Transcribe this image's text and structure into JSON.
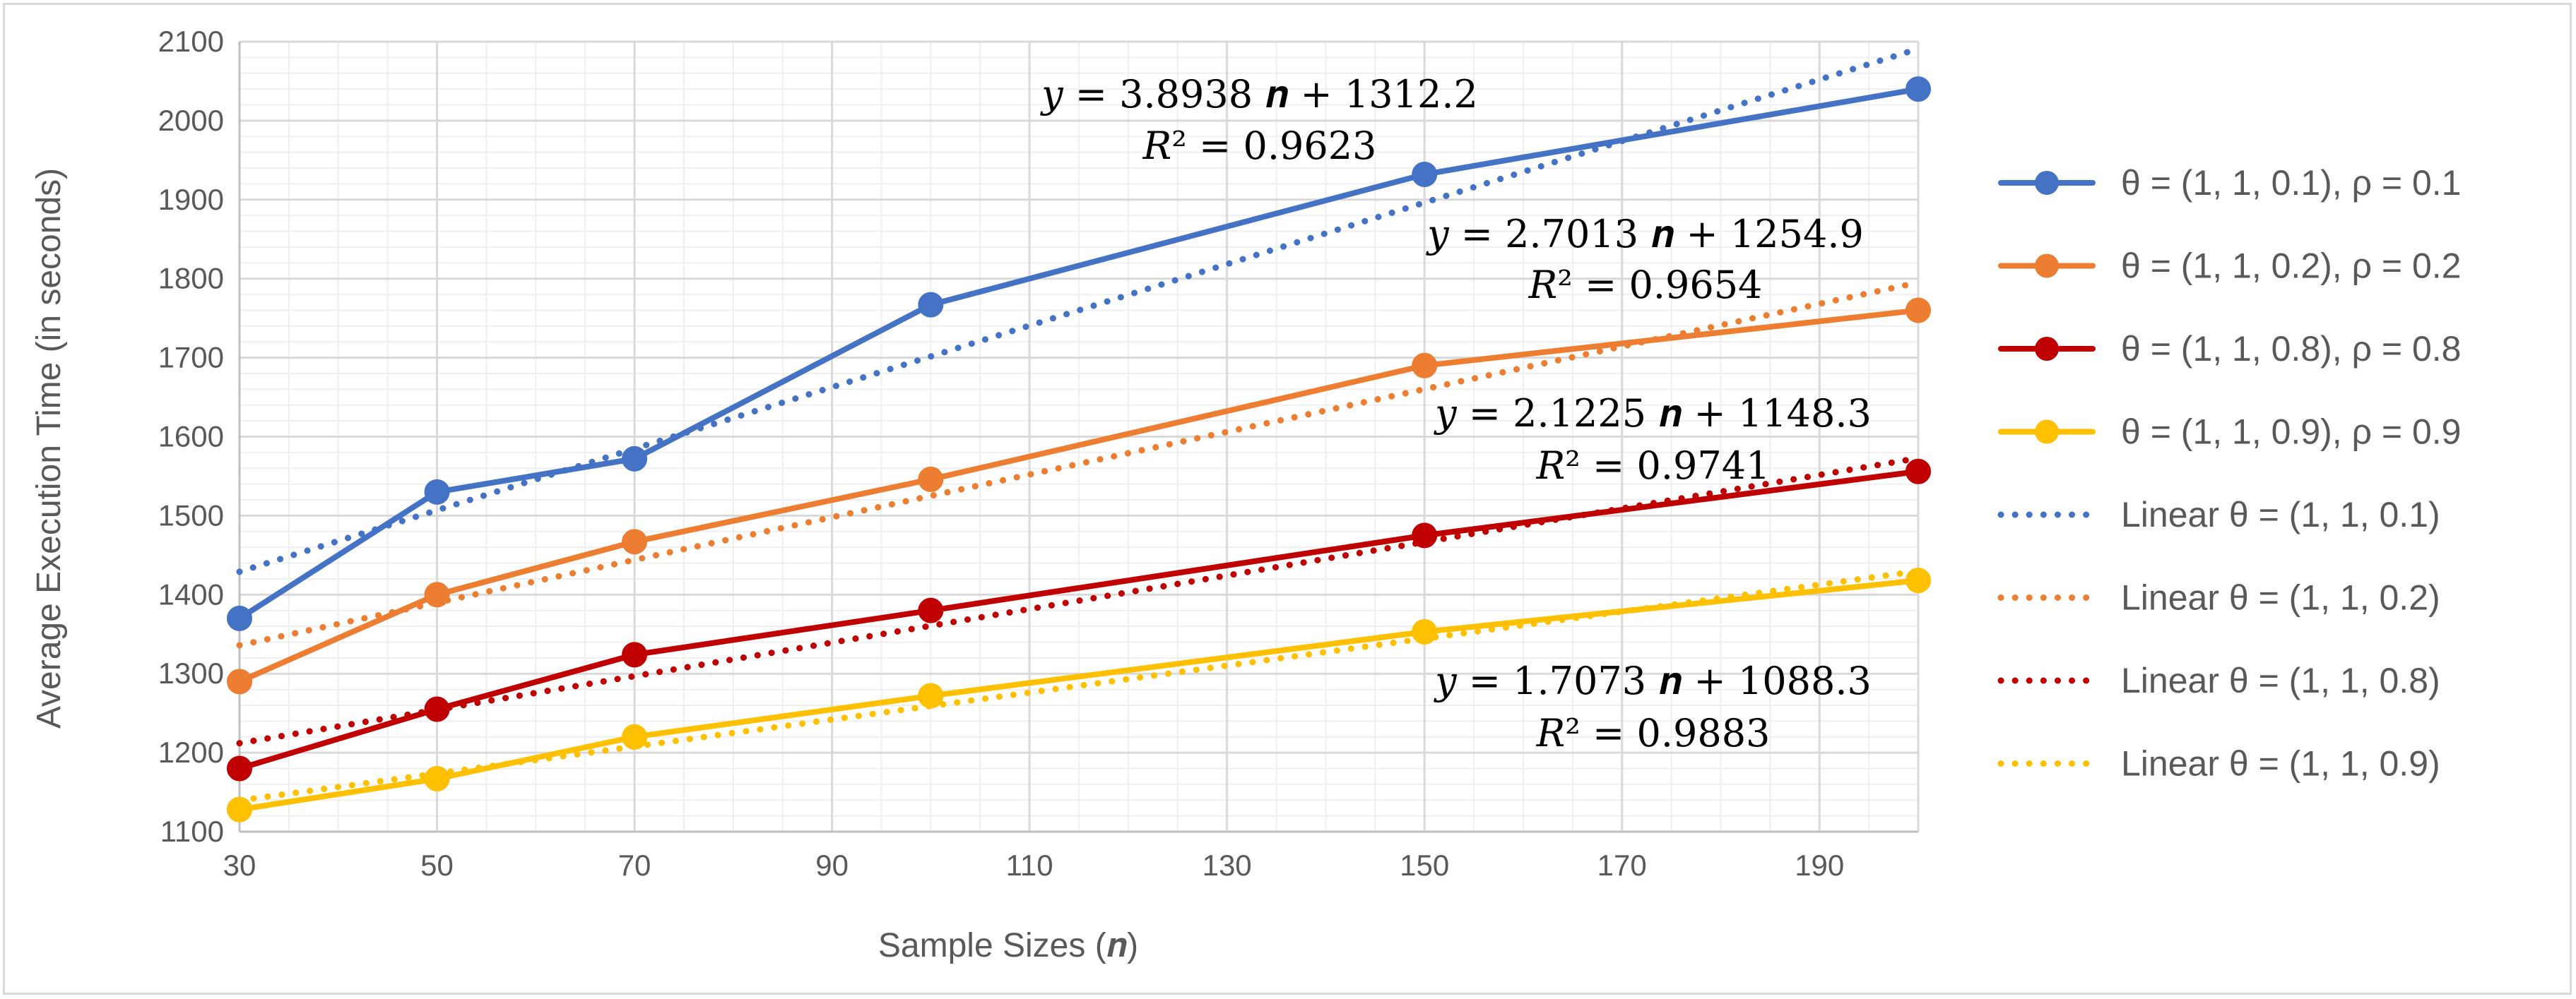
{
  "chart_data": {
    "type": "line",
    "title": "",
    "xlabel": "Sample Sizes (𝒏)",
    "ylabel": "Average Execution Time (in seconds)",
    "xlim": [
      30,
      200
    ],
    "ylim": [
      1100,
      2100
    ],
    "x_ticks": [
      30,
      50,
      70,
      90,
      110,
      130,
      150,
      170,
      190
    ],
    "y_ticks": [
      1100,
      1200,
      1300,
      1400,
      1500,
      1600,
      1700,
      1800,
      1900,
      2000,
      2100
    ],
    "x_minor_step": 5,
    "y_minor_step": 20,
    "grid": true,
    "legend_position": "right",
    "x": [
      30,
      50,
      70,
      100,
      150,
      200
    ],
    "series": [
      {
        "name": "θ = (1, 1, 0.1),  ρ = 0.1",
        "color": "#4472c4",
        "values": [
          1370,
          1530,
          1572,
          1767,
          1932,
          2040
        ],
        "trend": {
          "name": "Linear θ = (1, 1, 0.1)",
          "slope": 3.8938,
          "intercept": 1312.2,
          "eq_label": "𝑦 = 3.8938 𝒏 + 1312.2",
          "r2_label": "𝑅² = 0.9623"
        }
      },
      {
        "name": "θ = (1, 1, 0.2),  ρ = 0.2",
        "color": "#ed7d31",
        "values": [
          1290,
          1400,
          1467,
          1546,
          1690,
          1760
        ],
        "trend": {
          "name": "Linear θ = (1, 1, 0.2)",
          "slope": 2.7013,
          "intercept": 1254.9,
          "eq_label": "𝑦 = 2.7013 𝒏 + 1254.9",
          "r2_label": "𝑅² = 0.9654"
        }
      },
      {
        "name": "θ = (1, 1, 0.8),  ρ = 0.8",
        "color": "#c00000",
        "values": [
          1180,
          1255,
          1324,
          1380,
          1475,
          1556
        ],
        "trend": {
          "name": "Linear θ = (1, 1, 0.8)",
          "slope": 2.1225,
          "intercept": 1148.3,
          "eq_label": "𝑦 = 2.1225 𝒏 + 1148.3",
          "r2_label": "𝑅² = 0.9741"
        }
      },
      {
        "name": "θ = (1, 1, 0.9),  ρ = 0.9",
        "color": "#ffc000",
        "values": [
          1128,
          1167,
          1220,
          1272,
          1353,
          1418
        ],
        "trend": {
          "name": "Linear θ = (1, 1, 0.9)",
          "slope": 1.7073,
          "intercept": 1088.3,
          "eq_label": "𝑦 = 1.7073 𝒏 + 1088.3",
          "r2_label": "𝑅² = 0.9883"
        }
      }
    ]
  }
}
